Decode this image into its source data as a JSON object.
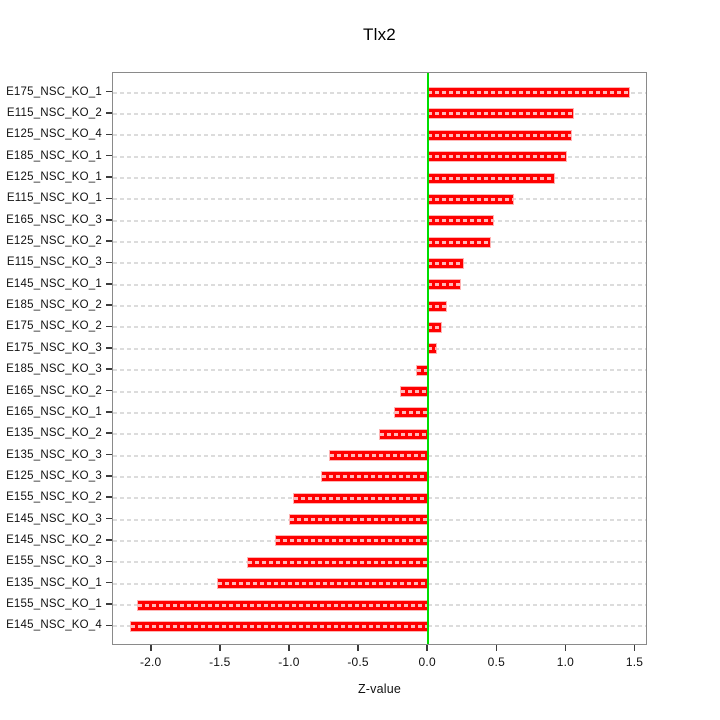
{
  "chart_data": {
    "type": "bar",
    "orientation": "horizontal",
    "title": "Tlx2",
    "xlabel": "Z-value",
    "categories": [
      "E175_NSC_KO_1",
      "E115_NSC_KO_2",
      "E125_NSC_KO_4",
      "E185_NSC_KO_1",
      "E125_NSC_KO_1",
      "E115_NSC_KO_1",
      "E165_NSC_KO_3",
      "E125_NSC_KO_2",
      "E115_NSC_KO_3",
      "E145_NSC_KO_1",
      "E185_NSC_KO_2",
      "E175_NSC_KO_2",
      "E175_NSC_KO_3",
      "E185_NSC_KO_3",
      "E165_NSC_KO_2",
      "E165_NSC_KO_1",
      "E135_NSC_KO_2",
      "E135_NSC_KO_3",
      "E125_NSC_KO_3",
      "E155_NSC_KO_2",
      "E145_NSC_KO_3",
      "E145_NSC_KO_2",
      "E155_NSC_KO_3",
      "E135_NSC_KO_1",
      "E155_NSC_KO_1",
      "E145_NSC_KO_4"
    ],
    "values": [
      1.45,
      1.05,
      1.03,
      1.0,
      0.91,
      0.61,
      0.47,
      0.45,
      0.25,
      0.23,
      0.13,
      0.09,
      0.06,
      -0.08,
      -0.2,
      -0.24,
      -0.35,
      -0.71,
      -0.77,
      -0.97,
      -1.0,
      -1.1,
      -1.3,
      -1.52,
      -2.1,
      -2.15
    ],
    "xtick_labels": [
      "-2.0",
      "-1.5",
      "-1.0",
      "-0.5",
      "0.0",
      "0.5",
      "1.0",
      "1.5"
    ],
    "xtick_values": [
      -2.0,
      -1.5,
      -1.0,
      -0.5,
      0.0,
      0.5,
      1.0,
      1.5
    ],
    "xlim": [
      -2.28,
      1.59
    ],
    "grid": true,
    "bar_color": "#ff0000",
    "bar_border_color": "#ffb3b3",
    "grid_color": "#dcdcdc",
    "zero_line_color": "#00dd00",
    "box_color": "#8a8a8a"
  }
}
